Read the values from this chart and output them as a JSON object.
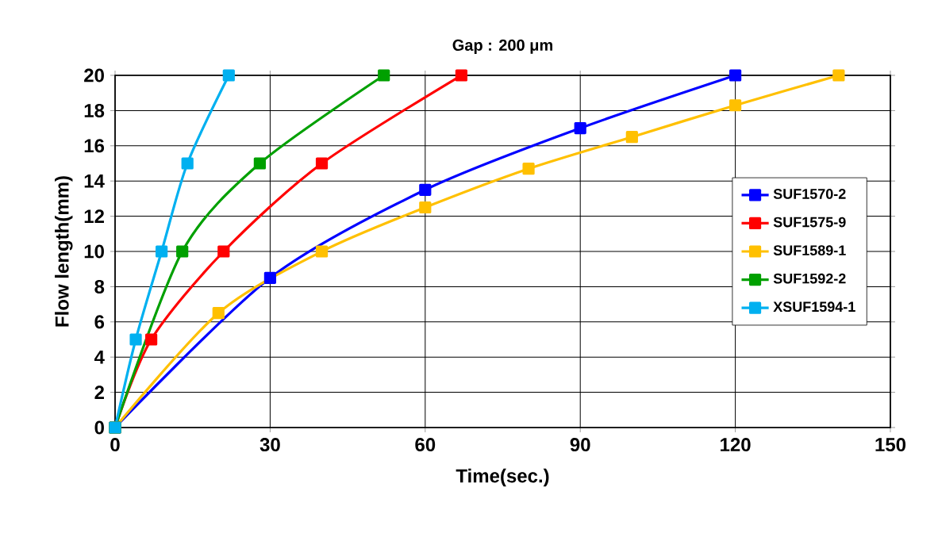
{
  "chart_data": {
    "type": "line",
    "title": "Gap : 200 μm",
    "xlabel": "Time(sec.)",
    "ylabel": "Flow length(mm)",
    "xlim": [
      0,
      150
    ],
    "xticks": [
      0,
      30,
      60,
      90,
      120,
      150
    ],
    "ylim": [
      0,
      20
    ],
    "yticks": [
      0,
      2,
      4,
      6,
      8,
      10,
      12,
      14,
      16,
      18,
      20
    ],
    "grid": true,
    "legend": "right",
    "marker": "square",
    "line_style": "solid",
    "series": [
      {
        "name": "SUF1570-2",
        "color": "#0000ff",
        "x": [
          0,
          30,
          60,
          90,
          120
        ],
        "values": [
          0,
          8.5,
          13.5,
          17,
          20
        ]
      },
      {
        "name": "SUF1575-9",
        "color": "#ff0000",
        "x": [
          0,
          7,
          21,
          40,
          67
        ],
        "values": [
          0,
          5,
          10,
          15,
          20
        ]
      },
      {
        "name": "SUF1589-1",
        "color": "#ffc000",
        "x": [
          0,
          20,
          40,
          60,
          80,
          100,
          120,
          140
        ],
        "values": [
          0,
          6.5,
          10,
          12.5,
          14.7,
          16.5,
          18.3,
          20
        ]
      },
      {
        "name": "SUF1592-2",
        "color": "#00a000",
        "x": [
          0,
          13,
          28,
          52
        ],
        "values": [
          0,
          10,
          15,
          20
        ]
      },
      {
        "name": "XSUF1594-1",
        "color": "#00b0f0",
        "x": [
          0,
          4,
          9,
          14,
          22
        ],
        "values": [
          0,
          5,
          10,
          15,
          20
        ]
      }
    ]
  }
}
